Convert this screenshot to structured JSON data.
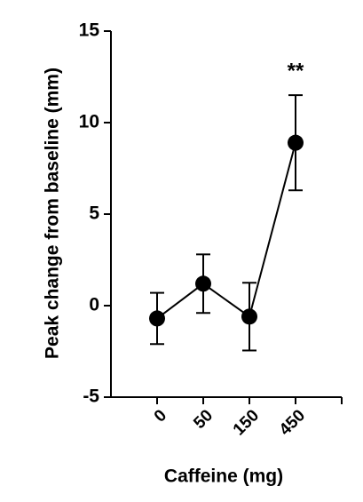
{
  "chart_data": {
    "type": "line",
    "x_label": "Caffeine (mg)",
    "y_label": "Peak change from baseline (mm)",
    "categories": [
      "0",
      "50",
      "150",
      "450"
    ],
    "values": [
      -0.7,
      1.2,
      -0.6,
      8.9
    ],
    "errors": [
      1.4,
      1.6,
      1.85,
      2.6
    ],
    "annotation": "**",
    "color": "#000000",
    "ylim": [
      -5,
      15
    ],
    "yticks": [
      -5,
      0,
      5,
      10,
      15
    ]
  }
}
